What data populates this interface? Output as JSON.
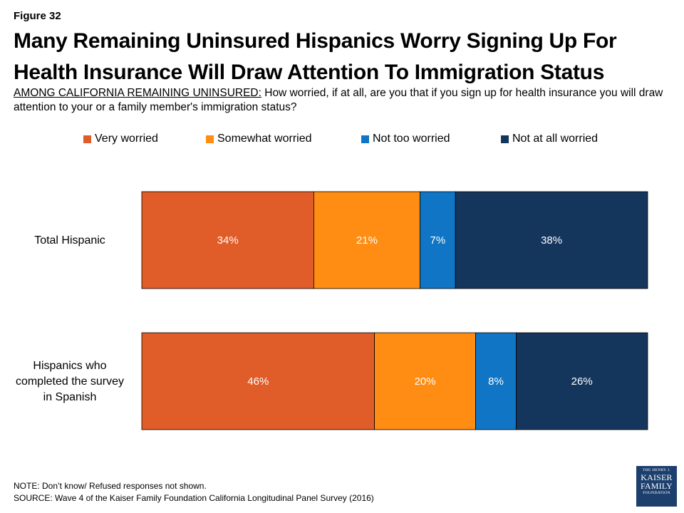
{
  "figure_label": "Figure 32",
  "title": "Many Remaining Uninsured Hispanics Worry Signing Up For Health Insurance Will Draw Attention To Immigration Status",
  "subtitle_lead": "AMONG CALIFORNIA REMAINING UNINSURED:",
  "subtitle_text": " How worried, if at all, are you that if you sign up for health insurance you will draw attention to your or a family member's immigration status?",
  "note": "NOTE: Don’t know/ Refused responses not shown.",
  "source": "SOURCE: Wave 4 of the Kaiser Family Foundation California Longitudinal Panel Survey (2016)",
  "logo": {
    "line1": "THE HENRY J.",
    "line2": "KAISER",
    "line3": "FAMILY",
    "line4": "FOUNDATION"
  },
  "chart_data": {
    "type": "bar",
    "orientation": "horizontal",
    "stacked": true,
    "categories": [
      "Total Hispanic",
      "Hispanics who completed the survey in Spanish"
    ],
    "category_lines": [
      [
        "Total Hispanic"
      ],
      [
        "Hispanics who",
        "completed the survey",
        "in Spanish"
      ]
    ],
    "series": [
      {
        "name": "Very worried",
        "color": "#e05c28",
        "values": [
          34,
          46
        ],
        "labels": [
          "34%",
          "46%"
        ]
      },
      {
        "name": "Somewhat worried",
        "color": "#ff8c13",
        "values": [
          21,
          20
        ],
        "labels": [
          "21%",
          "20%"
        ]
      },
      {
        "name": "Not too worried",
        "color": "#0f75c4",
        "values": [
          7,
          8
        ],
        "labels": [
          "7%",
          "8%"
        ]
      },
      {
        "name": "Not at all worried",
        "color": "#15365c",
        "values": [
          38,
          26
        ],
        "labels": [
          "38%",
          "26%"
        ]
      }
    ],
    "legend_position": "top",
    "grid": false,
    "axes_visible": false
  }
}
